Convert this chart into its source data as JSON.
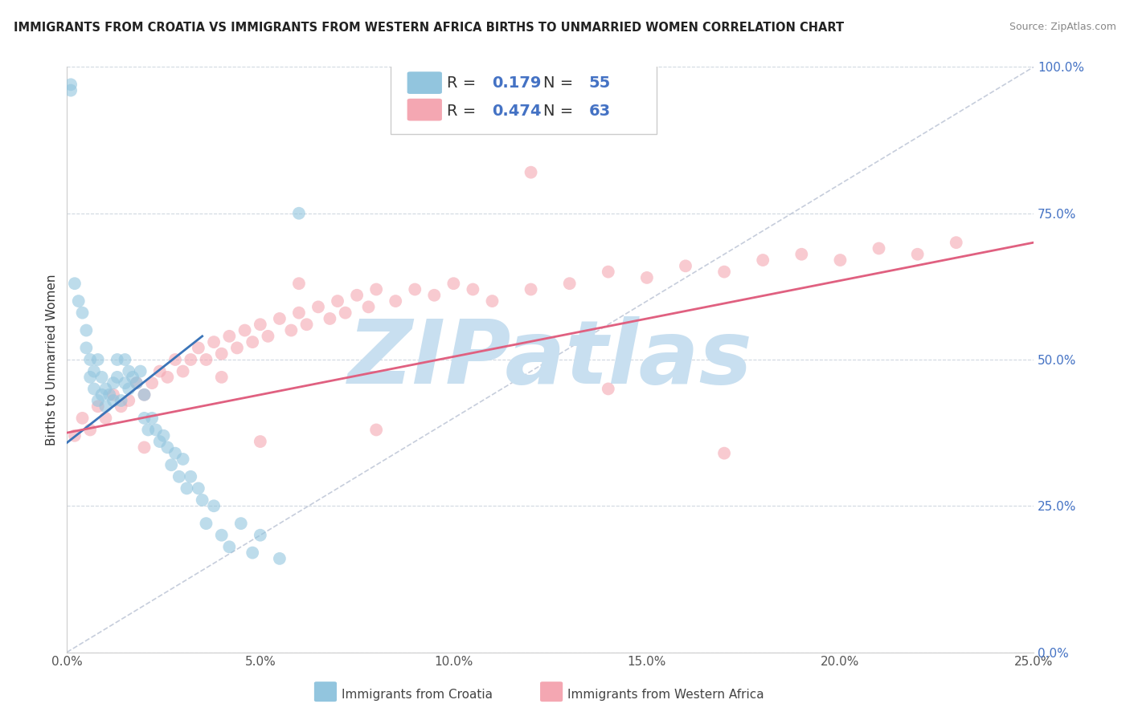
{
  "title": "IMMIGRANTS FROM CROATIA VS IMMIGRANTS FROM WESTERN AFRICA BIRTHS TO UNMARRIED WOMEN CORRELATION CHART",
  "source": "Source: ZipAtlas.com",
  "ylabel": "Births to Unmarried Women",
  "legend_label1": "Immigrants from Croatia",
  "legend_label2": "Immigrants from Western Africa",
  "R1": 0.179,
  "N1": 55,
  "R2": 0.474,
  "N2": 63,
  "color1": "#92c5de",
  "color2": "#f4a7b2",
  "trendline1_color": "#3b74b8",
  "trendline2_color": "#e06080",
  "background_color": "#ffffff",
  "xlim": [
    0.0,
    0.25
  ],
  "ylim": [
    0.0,
    1.0
  ],
  "xticks": [
    0.0,
    0.05,
    0.1,
    0.15,
    0.2,
    0.25
  ],
  "yticks": [
    0.0,
    0.25,
    0.5,
    0.75,
    1.0
  ],
  "xtick_labels": [
    "0.0%",
    "5.0%",
    "10.0%",
    "15.0%",
    "20.0%",
    "25.0%"
  ],
  "ytick_labels": [
    "0.0%",
    "25.0%",
    "50.0%",
    "75.0%",
    "100.0%"
  ],
  "watermark": "ZIPatlas",
  "watermark_color": "#c8dff0",
  "figsize": [
    14.06,
    8.92
  ],
  "dpi": 100,
  "croatia_x": [
    0.001,
    0.001,
    0.002,
    0.003,
    0.004,
    0.005,
    0.005,
    0.006,
    0.006,
    0.007,
    0.007,
    0.008,
    0.008,
    0.009,
    0.009,
    0.01,
    0.01,
    0.011,
    0.012,
    0.012,
    0.013,
    0.013,
    0.014,
    0.015,
    0.015,
    0.016,
    0.016,
    0.017,
    0.018,
    0.019,
    0.02,
    0.02,
    0.021,
    0.022,
    0.023,
    0.024,
    0.025,
    0.026,
    0.027,
    0.028,
    0.029,
    0.03,
    0.031,
    0.032,
    0.034,
    0.035,
    0.036,
    0.038,
    0.04,
    0.042,
    0.045,
    0.048,
    0.05,
    0.055,
    0.06
  ],
  "croatia_y": [
    0.97,
    0.96,
    0.63,
    0.6,
    0.58,
    0.55,
    0.52,
    0.5,
    0.47,
    0.48,
    0.45,
    0.5,
    0.43,
    0.47,
    0.44,
    0.42,
    0.45,
    0.44,
    0.46,
    0.43,
    0.47,
    0.5,
    0.43,
    0.46,
    0.5,
    0.45,
    0.48,
    0.47,
    0.46,
    0.48,
    0.44,
    0.4,
    0.38,
    0.4,
    0.38,
    0.36,
    0.37,
    0.35,
    0.32,
    0.34,
    0.3,
    0.33,
    0.28,
    0.3,
    0.28,
    0.26,
    0.22,
    0.25,
    0.2,
    0.18,
    0.22,
    0.17,
    0.2,
    0.16,
    0.75
  ],
  "western_africa_x": [
    0.002,
    0.004,
    0.006,
    0.008,
    0.01,
    0.012,
    0.014,
    0.016,
    0.018,
    0.02,
    0.022,
    0.024,
    0.026,
    0.028,
    0.03,
    0.032,
    0.034,
    0.036,
    0.038,
    0.04,
    0.042,
    0.044,
    0.046,
    0.048,
    0.05,
    0.052,
    0.055,
    0.058,
    0.06,
    0.062,
    0.065,
    0.068,
    0.07,
    0.072,
    0.075,
    0.078,
    0.08,
    0.085,
    0.09,
    0.095,
    0.1,
    0.105,
    0.11,
    0.12,
    0.13,
    0.14,
    0.15,
    0.16,
    0.17,
    0.18,
    0.19,
    0.2,
    0.21,
    0.22,
    0.23,
    0.02,
    0.05,
    0.08,
    0.12,
    0.17,
    0.06,
    0.04,
    0.14
  ],
  "western_africa_y": [
    0.37,
    0.4,
    0.38,
    0.42,
    0.4,
    0.44,
    0.42,
    0.43,
    0.46,
    0.44,
    0.46,
    0.48,
    0.47,
    0.5,
    0.48,
    0.5,
    0.52,
    0.5,
    0.53,
    0.51,
    0.54,
    0.52,
    0.55,
    0.53,
    0.56,
    0.54,
    0.57,
    0.55,
    0.58,
    0.56,
    0.59,
    0.57,
    0.6,
    0.58,
    0.61,
    0.59,
    0.62,
    0.6,
    0.62,
    0.61,
    0.63,
    0.62,
    0.6,
    0.62,
    0.63,
    0.65,
    0.64,
    0.66,
    0.65,
    0.67,
    0.68,
    0.67,
    0.69,
    0.68,
    0.7,
    0.35,
    0.36,
    0.38,
    0.82,
    0.34,
    0.63,
    0.47,
    0.45
  ],
  "trendline1_x": [
    0.0,
    0.035
  ],
  "trendline1_y": [
    0.358,
    0.54
  ],
  "trendline2_x": [
    0.0,
    0.25
  ],
  "trendline2_y": [
    0.375,
    0.7
  ]
}
